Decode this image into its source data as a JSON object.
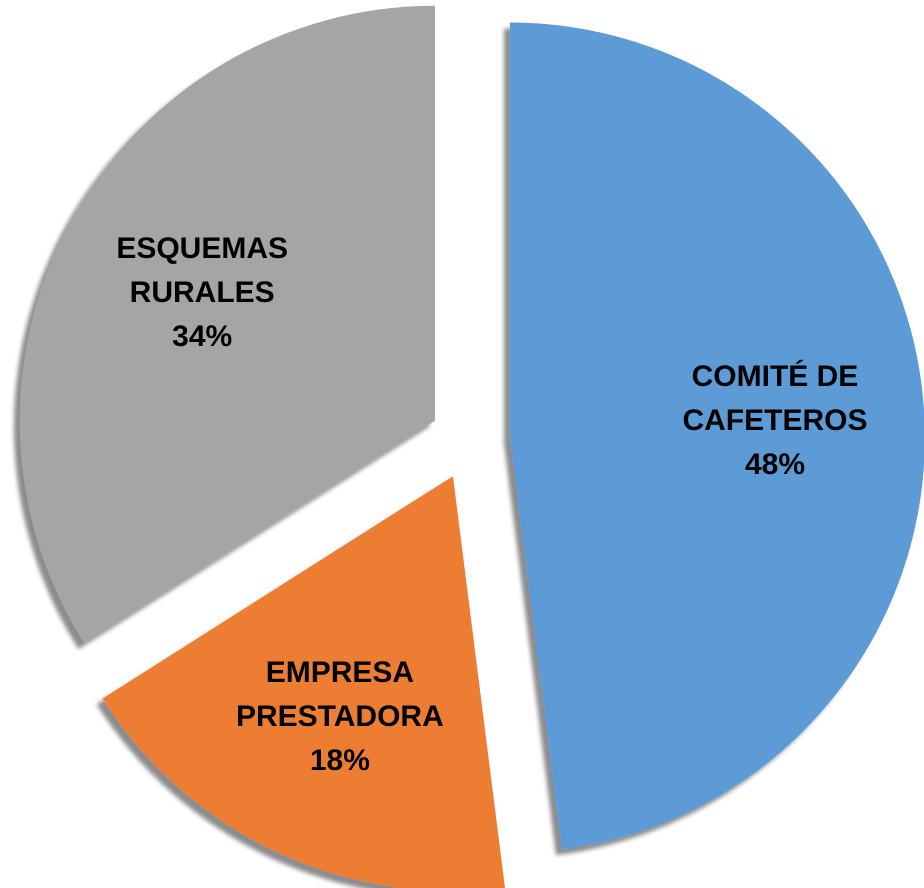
{
  "chart_data": {
    "type": "pie",
    "categories": [
      "COMITÉ DE CAFETEROS",
      "EMPRESA PRESTADORA",
      "ESQUEMAS RURALES"
    ],
    "values": [
      48,
      18,
      34
    ],
    "value_labels": [
      "48%",
      "18%",
      "34%"
    ],
    "colors": [
      "#5b9bd5",
      "#ed7d31",
      "#a5a5a5"
    ]
  }
}
